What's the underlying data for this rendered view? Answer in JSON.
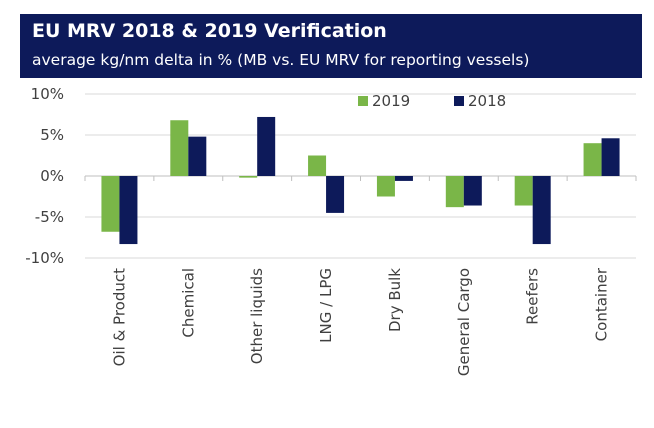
{
  "header": {
    "title": "EU MRV 2018 & 2019 Verification",
    "subtitle": "average kg/nm delta in % (MB vs. EU MRV for reporting vessels)"
  },
  "chart_data": {
    "type": "bar",
    "categories": [
      "Oil & Product",
      "Chemical",
      "Other liquids",
      "LNG / LPG",
      "Dry Bulk",
      "General Cargo",
      "Reefers",
      "Container"
    ],
    "series": [
      {
        "name": "2019",
        "color": "#7ab648",
        "values": [
          -6.8,
          6.8,
          -0.2,
          2.5,
          -2.5,
          -3.8,
          -3.6,
          4.0
        ]
      },
      {
        "name": "2018",
        "color": "#0d1a5a",
        "values": [
          -8.3,
          4.8,
          7.2,
          -4.5,
          -0.6,
          -3.6,
          -8.3,
          4.6
        ]
      }
    ],
    "ylim": [
      -10,
      10
    ],
    "yticks": [
      -10,
      -5,
      0,
      5,
      10
    ],
    "ytick_labels": [
      "-10%",
      "-5%",
      "0%",
      "5%",
      "10%"
    ],
    "grid": true,
    "legend_position": "top-right"
  }
}
